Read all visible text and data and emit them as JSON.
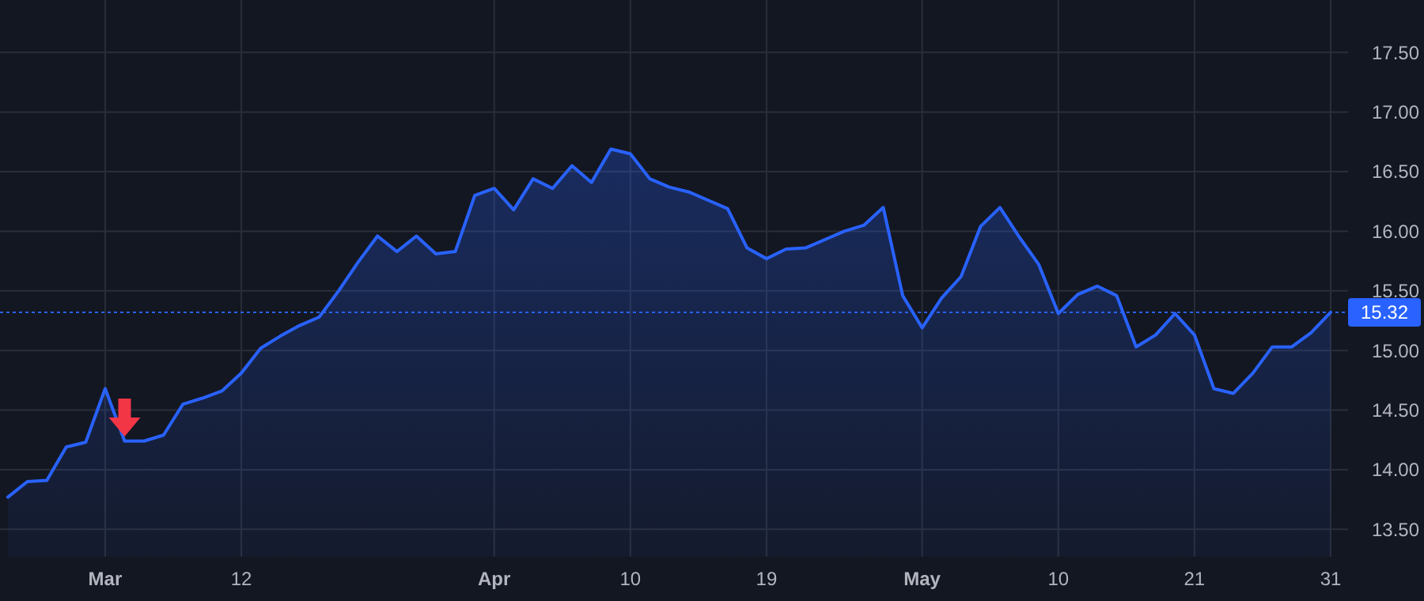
{
  "chart_data": {
    "type": "area",
    "categories": [
      null,
      null,
      null,
      null,
      null,
      "Mar",
      null,
      null,
      null,
      null,
      null,
      null,
      "12",
      null,
      null,
      null,
      null,
      null,
      null,
      null,
      null,
      null,
      null,
      null,
      null,
      "Apr",
      null,
      null,
      null,
      null,
      null,
      null,
      "10",
      null,
      null,
      null,
      null,
      null,
      null,
      "19",
      null,
      null,
      null,
      null,
      null,
      null,
      null,
      "May",
      null,
      null,
      null,
      null,
      null,
      null,
      "10",
      null,
      null,
      null,
      null,
      null,
      null,
      "21",
      null,
      null,
      null,
      null,
      null,
      null,
      "31"
    ],
    "series": [
      {
        "color": "#2962ff",
        "values": [
          13.77,
          13.9,
          13.91,
          14.19,
          14.23,
          14.68,
          14.24,
          14.24,
          14.29,
          14.55,
          14.6,
          14.66,
          14.81,
          15.02,
          15.12,
          15.21,
          15.28,
          15.5,
          15.74,
          15.96,
          15.83,
          15.96,
          15.81,
          15.83,
          16.3,
          16.36,
          16.18,
          16.44,
          16.36,
          16.55,
          16.41,
          16.69,
          16.65,
          16.44,
          16.37,
          16.33,
          16.26,
          16.19,
          15.86,
          15.77,
          15.85,
          15.86,
          15.93,
          16.0,
          16.05,
          16.2,
          15.46,
          15.19,
          15.44,
          15.62,
          16.04,
          16.2,
          15.95,
          15.72,
          15.31,
          15.47,
          15.54,
          15.46,
          15.03,
          15.13,
          15.31,
          15.13,
          14.68,
          14.64,
          14.81,
          15.03,
          15.03,
          15.15,
          15.32
        ]
      }
    ],
    "ylim": [
      13.27,
      17.94
    ],
    "yticks": [
      {
        "value": 13.5,
        "label": "13.50"
      },
      {
        "value": 14,
        "label": "14.00"
      },
      {
        "value": 14.5,
        "label": "14.50"
      },
      {
        "value": 15,
        "label": "15.00"
      },
      {
        "value": 15.5,
        "label": "15.50"
      },
      {
        "value": 16,
        "label": "16.00"
      },
      {
        "value": 16.5,
        "label": "16.50"
      },
      {
        "value": 17,
        "label": "17.00"
      },
      {
        "value": 17.5,
        "label": "17.50"
      }
    ],
    "grid": true,
    "ref_lines": [
      {
        "axis": "y",
        "value": 15.32,
        "label": "15.32",
        "color": "#2962ff",
        "line_style": "dotted"
      }
    ]
  }
}
